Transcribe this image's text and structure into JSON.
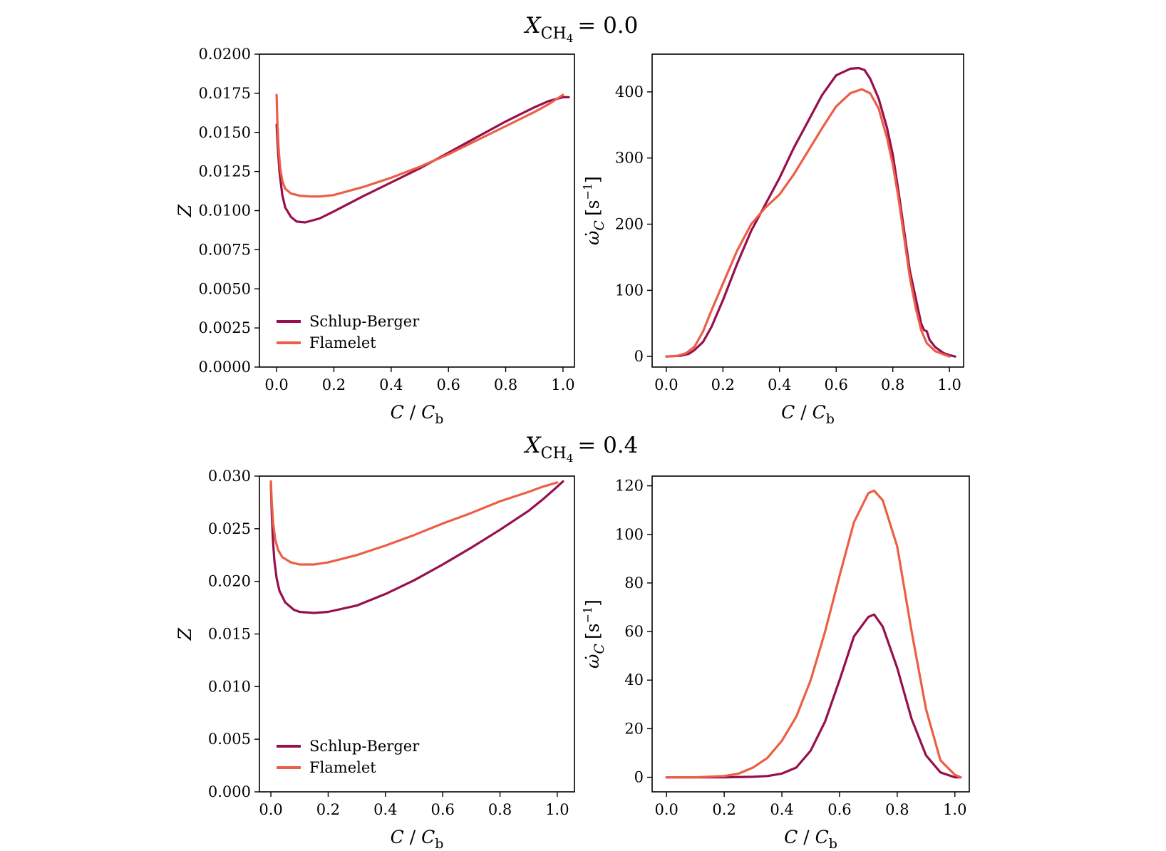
{
  "rows": [
    {
      "title_var": "X",
      "title_sub": "CH",
      "title_sub2": "4",
      "title_value": "= 0.0"
    },
    {
      "title_var": "X",
      "title_sub": "CH",
      "title_sub2": "4",
      "title_value": "= 0.4"
    }
  ],
  "colors": {
    "schlup_berger": "#960F4E",
    "flamelet": "#EC5E45"
  },
  "chart_data": [
    {
      "type": "line",
      "xlabel": "C / C_b",
      "ylabel": "Z",
      "xlim": [
        -0.06,
        1.04
      ],
      "ylim": [
        0.0,
        0.02
      ],
      "xticks": [
        0.0,
        0.2,
        0.4,
        0.6,
        0.8,
        1.0
      ],
      "xtick_labels": [
        "0.0",
        "0.2",
        "0.4",
        "0.6",
        "0.8",
        "1.0"
      ],
      "yticks": [
        0.0,
        0.0025,
        0.005,
        0.0075,
        0.01,
        0.0125,
        0.015,
        0.0175,
        0.02
      ],
      "ytick_labels": [
        "0.0000",
        "0.0025",
        "0.0050",
        "0.0075",
        "0.0100",
        "0.0125",
        "0.0150",
        "0.0175",
        "0.0200"
      ],
      "legend": "lower-left",
      "grid": false,
      "series": [
        {
          "name": "Schlup-Berger",
          "color": "#960F4E",
          "x": [
            0.0,
            0.005,
            0.01,
            0.02,
            0.03,
            0.05,
            0.07,
            0.1,
            0.15,
            0.2,
            0.3,
            0.4,
            0.5,
            0.6,
            0.7,
            0.8,
            0.9,
            0.95,
            1.0,
            1.02
          ],
          "y": [
            0.0155,
            0.0138,
            0.0125,
            0.011,
            0.0102,
            0.0096,
            0.0093,
            0.00925,
            0.0095,
            0.00995,
            0.0109,
            0.0118,
            0.0127,
            0.0137,
            0.0147,
            0.0157,
            0.0166,
            0.017,
            0.01725,
            0.01725
          ]
        },
        {
          "name": "Flamelet",
          "color": "#EC5E45",
          "x": [
            0.0,
            0.003,
            0.007,
            0.012,
            0.02,
            0.03,
            0.05,
            0.08,
            0.12,
            0.15,
            0.2,
            0.3,
            0.4,
            0.5,
            0.6,
            0.7,
            0.8,
            0.9,
            0.95,
            1.0
          ],
          "y": [
            0.0174,
            0.0155,
            0.014,
            0.0128,
            0.0119,
            0.0114,
            0.0111,
            0.01095,
            0.0109,
            0.0109,
            0.011,
            0.0115,
            0.0121,
            0.0128,
            0.0136,
            0.0145,
            0.0154,
            0.0163,
            0.0168,
            0.0174
          ]
        }
      ]
    },
    {
      "type": "line",
      "xlabel": "C / C_b",
      "ylabel": "ω̇_C [s^-1]",
      "xlim": [
        -0.05,
        1.05
      ],
      "ylim": [
        -16,
        457
      ],
      "xticks": [
        0.0,
        0.2,
        0.4,
        0.6,
        0.8,
        1.0
      ],
      "xtick_labels": [
        "0.0",
        "0.2",
        "0.4",
        "0.6",
        "0.8",
        "1.0"
      ],
      "yticks": [
        0,
        100,
        200,
        300,
        400
      ],
      "ytick_labels": [
        "0",
        "100",
        "200",
        "300",
        "400"
      ],
      "grid": false,
      "series": [
        {
          "name": "Schlup-Berger",
          "color": "#960F4E",
          "x": [
            0.0,
            0.05,
            0.08,
            0.1,
            0.13,
            0.16,
            0.2,
            0.25,
            0.3,
            0.35,
            0.4,
            0.45,
            0.5,
            0.55,
            0.6,
            0.65,
            0.68,
            0.7,
            0.72,
            0.75,
            0.78,
            0.8,
            0.82,
            0.84,
            0.86,
            0.88,
            0.9,
            0.91,
            0.92,
            0.93,
            0.95,
            0.98,
            1.0,
            1.02
          ],
          "y": [
            0,
            1,
            4,
            10,
            22,
            45,
            85,
            140,
            190,
            230,
            270,
            315,
            355,
            395,
            425,
            435,
            436,
            433,
            420,
            390,
            345,
            305,
            250,
            190,
            130,
            90,
            50,
            40,
            38,
            25,
            14,
            5,
            2,
            0
          ]
        },
        {
          "name": "Flamelet",
          "color": "#EC5E45",
          "x": [
            0.0,
            0.04,
            0.07,
            0.1,
            0.13,
            0.16,
            0.2,
            0.25,
            0.3,
            0.35,
            0.4,
            0.45,
            0.5,
            0.55,
            0.6,
            0.65,
            0.69,
            0.72,
            0.75,
            0.78,
            0.8,
            0.82,
            0.84,
            0.86,
            0.88,
            0.9,
            0.92,
            0.95,
            0.98,
            1.0
          ],
          "y": [
            0,
            1,
            5,
            15,
            38,
            70,
            110,
            160,
            200,
            225,
            245,
            275,
            310,
            345,
            378,
            398,
            404,
            398,
            375,
            330,
            290,
            240,
            180,
            120,
            75,
            40,
            20,
            8,
            3,
            0
          ]
        }
      ]
    },
    {
      "type": "line",
      "xlabel": "C / C_b",
      "ylabel": "Z",
      "xlim": [
        -0.04,
        1.06
      ],
      "ylim": [
        0.0,
        0.03
      ],
      "xticks": [
        0.0,
        0.2,
        0.4,
        0.6,
        0.8,
        1.0
      ],
      "xtick_labels": [
        "0.0",
        "0.2",
        "0.4",
        "0.6",
        "0.8",
        "1.0"
      ],
      "yticks": [
        0.0,
        0.005,
        0.01,
        0.015,
        0.02,
        0.025,
        0.03
      ],
      "ytick_labels": [
        "0.000",
        "0.005",
        "0.010",
        "0.015",
        "0.020",
        "0.025",
        "0.030"
      ],
      "legend": "lower-left",
      "grid": false,
      "series": [
        {
          "name": "Schlup-Berger",
          "color": "#960F4E",
          "x": [
            0.0,
            0.003,
            0.007,
            0.012,
            0.02,
            0.03,
            0.05,
            0.08,
            0.1,
            0.15,
            0.2,
            0.3,
            0.4,
            0.5,
            0.6,
            0.7,
            0.8,
            0.9,
            0.95,
            1.0,
            1.02
          ],
          "y": [
            0.0292,
            0.0265,
            0.024,
            0.022,
            0.0203,
            0.0191,
            0.018,
            0.0173,
            0.0171,
            0.017,
            0.0171,
            0.0177,
            0.0188,
            0.0201,
            0.0216,
            0.0232,
            0.0249,
            0.0267,
            0.0278,
            0.029,
            0.0295
          ]
        },
        {
          "name": "Flamelet",
          "color": "#EC5E45",
          "x": [
            0.0,
            0.003,
            0.008,
            0.015,
            0.025,
            0.04,
            0.07,
            0.1,
            0.15,
            0.2,
            0.3,
            0.4,
            0.5,
            0.6,
            0.7,
            0.8,
            0.9,
            0.95,
            1.0
          ],
          "y": [
            0.0295,
            0.0275,
            0.0255,
            0.024,
            0.023,
            0.0223,
            0.0218,
            0.0216,
            0.0216,
            0.0218,
            0.0225,
            0.0234,
            0.0244,
            0.0255,
            0.0265,
            0.0276,
            0.0285,
            0.029,
            0.0294
          ]
        }
      ]
    },
    {
      "type": "line",
      "xlabel": "C / C_b",
      "ylabel": "ω̇_C [s^-1]",
      "xlim": [
        -0.05,
        1.05
      ],
      "ylim": [
        -6,
        124
      ],
      "xticks": [
        0.0,
        0.2,
        0.4,
        0.6,
        0.8,
        1.0
      ],
      "xtick_labels": [
        "0.0",
        "0.2",
        "0.4",
        "0.6",
        "0.8",
        "1.0"
      ],
      "yticks": [
        0,
        20,
        40,
        60,
        80,
        100,
        120
      ],
      "ytick_labels": [
        "0",
        "20",
        "40",
        "60",
        "80",
        "100",
        "120"
      ],
      "grid": false,
      "series": [
        {
          "name": "Schlup-Berger",
          "color": "#960F4E",
          "x": [
            0.0,
            0.2,
            0.3,
            0.35,
            0.4,
            0.45,
            0.5,
            0.55,
            0.6,
            0.65,
            0.7,
            0.72,
            0.75,
            0.8,
            0.85,
            0.9,
            0.95,
            1.0,
            1.02
          ],
          "y": [
            0,
            0,
            0.2,
            0.5,
            1.5,
            4,
            11,
            23,
            40,
            58,
            66,
            67,
            62,
            45,
            24,
            9,
            2,
            0,
            0
          ]
        },
        {
          "name": "Flamelet",
          "color": "#EC5E45",
          "x": [
            0.0,
            0.1,
            0.2,
            0.25,
            0.3,
            0.35,
            0.4,
            0.45,
            0.5,
            0.55,
            0.6,
            0.65,
            0.7,
            0.72,
            0.75,
            0.8,
            0.85,
            0.9,
            0.95,
            1.0,
            1.02
          ],
          "y": [
            0,
            0,
            0.5,
            1.5,
            4,
            8,
            15,
            25,
            40,
            60,
            83,
            105,
            117,
            118,
            114,
            95,
            60,
            28,
            7,
            1,
            0
          ]
        }
      ]
    }
  ]
}
